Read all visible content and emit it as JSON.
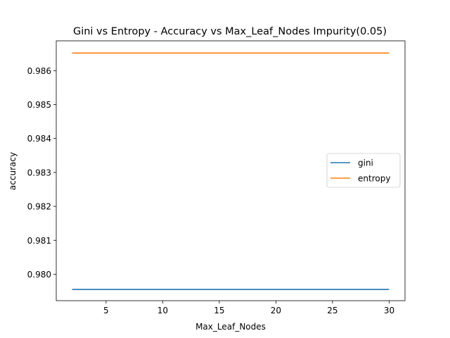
{
  "chart_data": {
    "type": "line",
    "title": "Gini vs Entropy - Accuracy vs Max_Leaf_Nodes Impurity(0.05)",
    "xlabel": "Max_Leaf_Nodes",
    "ylabel": "accuracy",
    "x": [
      2,
      3,
      4,
      5,
      6,
      7,
      8,
      9,
      10,
      11,
      12,
      13,
      14,
      15,
      16,
      17,
      18,
      19,
      20,
      21,
      22,
      23,
      24,
      25,
      26,
      27,
      28,
      29,
      30
    ],
    "xlim": [
      0.6,
      31.4
    ],
    "ylim": [
      0.97922,
      0.98688
    ],
    "xticks": [
      5,
      10,
      15,
      20,
      25,
      30
    ],
    "xtick_labels": [
      "5",
      "10",
      "15",
      "20",
      "25",
      "30"
    ],
    "yticks": [
      0.98,
      0.981,
      0.982,
      0.983,
      0.984,
      0.985,
      0.986
    ],
    "ytick_labels": [
      "0.980",
      "0.981",
      "0.982",
      "0.983",
      "0.984",
      "0.985",
      "0.986"
    ],
    "grid": false,
    "legend_position": "center-right",
    "series": [
      {
        "name": "gini",
        "color": "#1f77b4",
        "values": [
          0.97955,
          0.97955,
          0.97955,
          0.97955,
          0.97955,
          0.97955,
          0.97955,
          0.97955,
          0.97955,
          0.97955,
          0.97955,
          0.97955,
          0.97955,
          0.97955,
          0.97955,
          0.97955,
          0.97955,
          0.97955,
          0.97955,
          0.97955,
          0.97955,
          0.97955,
          0.97955,
          0.97955,
          0.97955,
          0.97955,
          0.97955,
          0.97955,
          0.97955
        ]
      },
      {
        "name": "entropy",
        "color": "#ff7f0e",
        "values": [
          0.98652,
          0.98652,
          0.98652,
          0.98652,
          0.98652,
          0.98652,
          0.98652,
          0.98652,
          0.98652,
          0.98652,
          0.98652,
          0.98652,
          0.98652,
          0.98652,
          0.98652,
          0.98652,
          0.98652,
          0.98652,
          0.98652,
          0.98652,
          0.98652,
          0.98652,
          0.98652,
          0.98652,
          0.98652,
          0.98652,
          0.98652,
          0.98652,
          0.98652
        ]
      }
    ]
  }
}
